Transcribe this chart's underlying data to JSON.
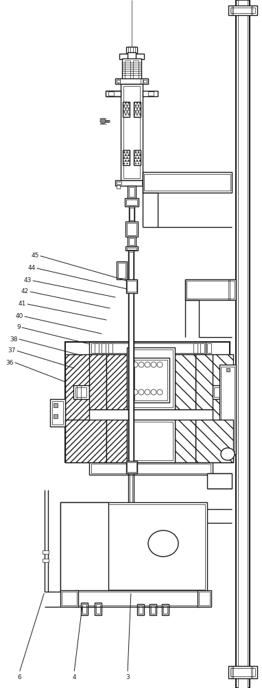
{
  "bg_color": "#ffffff",
  "line_color": "#1a1a1a",
  "lw_main": 1.0,
  "lw_thin": 0.5,
  "lw_thick": 1.5,
  "lw_xthick": 2.0
}
